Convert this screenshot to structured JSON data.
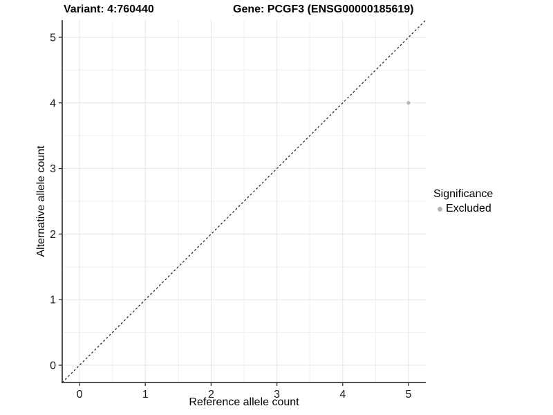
{
  "titles": {
    "variant": "Variant: 4:760440",
    "gene": "Gene: PCGF3 (ENSG00000185619)"
  },
  "colors": {
    "background": "#ffffff",
    "axis_line": "#3c3c3c",
    "tick_mark": "#333333",
    "tick_label": "#1a1a1a",
    "grid_major": "#e4e4e4",
    "grid_minor": "#f0f0f0",
    "identity_line": "#1a1a1a",
    "excluded_point": "#b4b4b4"
  },
  "chart_data": {
    "type": "scatter",
    "title": "Variant: 4:760440  Gene: PCGF3 (ENSG00000185619)",
    "xlabel": "Reference allele count",
    "ylabel": "Alternative allele count",
    "xlim": [
      -0.263,
      5.263
    ],
    "ylim": [
      -0.263,
      5.263
    ],
    "x_ticks": [
      0,
      1,
      2,
      3,
      4,
      5
    ],
    "y_ticks": [
      0,
      1,
      2,
      3,
      4,
      5
    ],
    "x_minor": [
      0.5,
      1.5,
      2.5,
      3.5,
      4.5
    ],
    "y_minor": [
      0.5,
      1.5,
      2.5,
      3.5,
      4.5
    ],
    "grid": true,
    "points": [
      {
        "x": 5,
        "y": 4,
        "series": "Excluded",
        "color": "#b4b4b4"
      }
    ],
    "identity_line": {
      "style": "dashed",
      "from": [
        -0.263,
        -0.263
      ],
      "to": [
        5.263,
        5.263
      ]
    },
    "legend": {
      "title": "Significance",
      "position": "right",
      "items": [
        {
          "label": "Excluded",
          "color": "#b4b4b4"
        }
      ]
    }
  }
}
